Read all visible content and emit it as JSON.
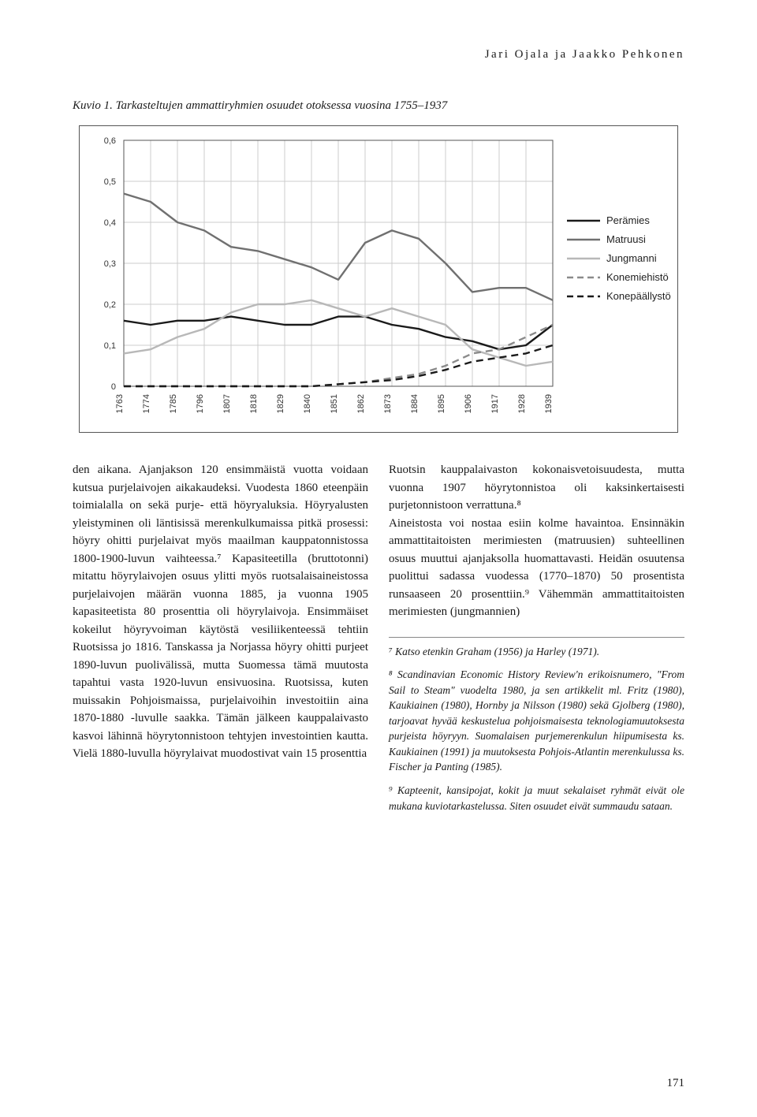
{
  "header": {
    "authors": "Jari Ojala ja Jaakko Pehkonen"
  },
  "figure": {
    "caption": "Kuvio 1. Tarkasteltujen ammattiryhmien osuudet otoksessa vuosina 1755–1937",
    "chart": {
      "type": "line",
      "background_color": "#ffffff",
      "plot_border_color": "#555555",
      "grid_color": "#cccccc",
      "ylim": [
        0,
        0.6
      ],
      "ytick_step": 0.1,
      "ytick_labels": [
        "0",
        "0,1",
        "0,2",
        "0,3",
        "0,4",
        "0,5",
        "0,6"
      ],
      "xtick_labels": [
        "1763",
        "1774",
        "1785",
        "1796",
        "1807",
        "1818",
        "1829",
        "1840",
        "1851",
        "1862",
        "1873",
        "1884",
        "1895",
        "1906",
        "1917",
        "1928",
        "1939"
      ],
      "x_values": [
        1763,
        1774,
        1785,
        1796,
        1807,
        1818,
        1829,
        1840,
        1851,
        1862,
        1873,
        1884,
        1895,
        1906,
        1917,
        1928,
        1939
      ],
      "axis_fontsize": 11,
      "label_color": "#333333",
      "legend_fontsize": 13,
      "legend_position": "right",
      "line_width": 2.4,
      "series": [
        {
          "name": "Perämies",
          "color": "#1a1a1a",
          "dash": "solid",
          "y": [
            0.16,
            0.15,
            0.16,
            0.16,
            0.17,
            0.16,
            0.15,
            0.15,
            0.17,
            0.17,
            0.15,
            0.14,
            0.12,
            0.11,
            0.09,
            0.1,
            0.15
          ]
        },
        {
          "name": "Matruusi",
          "color": "#707070",
          "dash": "solid",
          "y": [
            0.47,
            0.45,
            0.4,
            0.38,
            0.34,
            0.33,
            0.31,
            0.29,
            0.26,
            0.35,
            0.38,
            0.36,
            0.3,
            0.23,
            0.24,
            0.24,
            0.21
          ]
        },
        {
          "name": "Jungmanni",
          "color": "#b8b8b8",
          "dash": "solid",
          "y": [
            0.08,
            0.09,
            0.12,
            0.14,
            0.18,
            0.2,
            0.2,
            0.21,
            0.19,
            0.17,
            0.19,
            0.17,
            0.15,
            0.09,
            0.07,
            0.05,
            0.06
          ]
        },
        {
          "name": "Konemiehistö",
          "color": "#8a8a8a",
          "dash": "dashed",
          "y": [
            0,
            0,
            0,
            0,
            0,
            0,
            0,
            0,
            0.005,
            0.01,
            0.02,
            0.03,
            0.05,
            0.08,
            0.09,
            0.12,
            0.15
          ]
        },
        {
          "name": "Konepäällystö",
          "color": "#1a1a1a",
          "dash": "dashed",
          "y": [
            0,
            0,
            0,
            0,
            0,
            0,
            0,
            0,
            0.005,
            0.01,
            0.015,
            0.025,
            0.04,
            0.06,
            0.07,
            0.08,
            0.1
          ]
        }
      ]
    }
  },
  "body": {
    "left": "den aikana. Ajanjakson 120 ensimmäistä vuotta voidaan kutsua purjelaivojen aikakaudeksi. Vuodesta 1860 eteenpäin toimialalla on sekä purje- että höyryaluksia. Höyryalusten yleistyminen oli läntisissä merenkulkumaissa pitkä prosessi: höyry ohitti purjelaivat myös maailman kauppatonnistossa 1800-1900-luvun vaihteessa.⁷ Kapasiteetilla (bruttotonni) mitattu höyrylaivojen osuus ylitti myös ruotsalaisaineistossa purjelaivojen määrän vuonna 1885, ja vuonna 1905 kapasiteetista 80 prosenttia oli höyrylaivoja. Ensimmäiset kokeilut höyryvoiman käytöstä vesiliikenteessä tehtiin Ruotsissa jo 1816. Tanskassa ja Norjassa höyry ohitti purjeet 1890-luvun puolivälissä, mutta Suomessa tämä muutosta tapahtui vasta 1920-luvun ensivuosina. Ruotsissa, kuten muissakin Pohjoismaissa, purjelaivoihin investoitiin aina 1870-1880 -luvulle saakka. Tämän jälkeen kauppalaivasto kasvoi lähinnä höyrytonnistoon tehtyjen investointien kautta. Vielä 1880-luvulla höyrylaivat muodostivat vain 15 prosenttia",
    "right": "Ruotsin kauppalaivaston kokonaisvetoisuudesta, mutta vuonna 1907 höyrytonnistoa oli kaksinkertaisesti purjetonnistoon verrattuna.⁸\n    Aineistosta voi nostaa esiin kolme havaintoa. Ensinnäkin ammattitaitoisten merimiesten (matruusien) suhteellinen osuus muuttui ajanjaksolla huomattavasti. Heidän osuutensa puolittui sadassa vuodessa (1770–1870) 50 prosentista runsaaseen 20 prosenttiin.⁹ Vähemmän ammattitaitoisten merimiesten (jungmannien)"
  },
  "footnotes": {
    "f7": "⁷ Katso etenkin Graham (1956) ja Harley (1971).",
    "f8": "⁸ Scandinavian Economic History Review'n erikoisnumero, \"From Sail to Steam\" vuodelta 1980, ja sen artikkelit ml. Fritz (1980), Kaukiainen (1980), Hornby ja Nilsson (1980) sekä Gjolberg (1980), tarjoavat hyvää keskustelua pohjoismaisesta teknologiamuutoksesta purjeista höyryyn. Suomalaisen purjemerenkulun hiipumisesta ks. Kaukiainen (1991) ja muutoksesta Pohjois-Atlantin merenkulussa ks. Fischer ja Panting (1985).",
    "f9": "⁹ Kapteenit, kansipojat, kokit ja muut sekalaiset ryhmät eivät ole mukana kuviotarkastelussa. Siten osuudet eivät summaudu sataan."
  },
  "page_number": "171"
}
